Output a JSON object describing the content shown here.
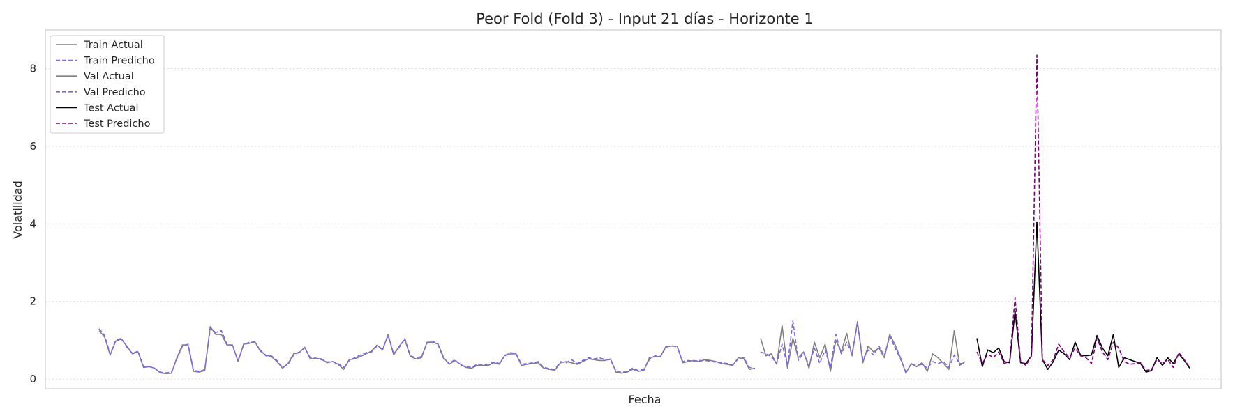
{
  "chart_data": {
    "type": "line",
    "title": "Peor Fold (Fold 3) - Input 21 días - Horizonte 1",
    "xlabel": "Fecha",
    "ylabel": "Volatilidad",
    "ylim": [
      -0.25,
      9.0
    ],
    "yticks": [
      0,
      2,
      4,
      6,
      8
    ],
    "grid": "horizontal dotted",
    "legend_position": "top-left",
    "series": [
      {
        "name": "Train Actual",
        "color": "#808080",
        "style": "solid",
        "values": [
          1.25,
          1.08,
          0.62,
          0.98,
          1.03,
          0.85,
          0.65,
          0.7,
          0.3,
          0.32,
          0.28,
          0.16,
          0.14,
          0.15,
          0.55,
          0.88,
          0.88,
          0.2,
          0.18,
          0.22,
          1.35,
          1.15,
          1.15,
          0.88,
          0.88,
          0.45,
          0.9,
          0.92,
          0.97,
          0.72,
          0.62,
          0.58,
          0.45,
          0.28,
          0.4,
          0.65,
          0.68,
          0.82,
          0.52,
          0.53,
          0.52,
          0.42,
          0.45,
          0.38,
          0.25,
          0.5,
          0.52,
          0.58,
          0.65,
          0.72,
          0.88,
          0.75,
          1.15,
          0.62,
          0.85,
          1.02,
          0.58,
          0.52,
          0.55,
          0.95,
          0.95,
          0.9,
          0.55,
          0.38,
          0.48,
          0.38,
          0.3,
          0.28,
          0.35,
          0.35,
          0.35,
          0.42,
          0.38,
          0.62,
          0.65,
          0.65,
          0.35,
          0.38,
          0.4,
          0.42,
          0.28,
          0.25,
          0.23,
          0.42,
          0.45,
          0.42,
          0.38,
          0.45,
          0.52,
          0.5,
          0.48,
          0.48,
          0.52,
          0.18,
          0.15,
          0.18,
          0.25,
          0.2,
          0.22,
          0.55,
          0.58,
          0.58,
          0.85,
          0.85,
          0.85,
          0.42,
          0.45,
          0.48,
          0.45,
          0.5,
          0.48,
          0.45,
          0.4,
          0.38,
          0.35,
          0.55,
          0.52,
          0.25,
          0.28
        ]
      },
      {
        "name": "Train Predicho",
        "color": "#7b68ee",
        "style": "dashed",
        "values": [
          1.3,
          1.12,
          0.65,
          1.0,
          1.05,
          0.82,
          0.66,
          0.72,
          0.32,
          0.33,
          0.27,
          0.18,
          0.16,
          0.17,
          0.52,
          0.85,
          0.9,
          0.22,
          0.2,
          0.24,
          1.3,
          1.2,
          1.25,
          0.9,
          0.86,
          0.48,
          0.88,
          0.95,
          0.95,
          0.75,
          0.6,
          0.6,
          0.48,
          0.3,
          0.38,
          0.62,
          0.7,
          0.8,
          0.55,
          0.54,
          0.5,
          0.44,
          0.45,
          0.4,
          0.3,
          0.48,
          0.55,
          0.62,
          0.68,
          0.7,
          0.85,
          0.78,
          1.12,
          0.65,
          0.82,
          1.05,
          0.6,
          0.55,
          0.58,
          0.92,
          0.98,
          0.88,
          0.52,
          0.4,
          0.5,
          0.36,
          0.32,
          0.3,
          0.38,
          0.36,
          0.38,
          0.44,
          0.4,
          0.6,
          0.68,
          0.66,
          0.38,
          0.4,
          0.42,
          0.45,
          0.3,
          0.27,
          0.25,
          0.45,
          0.42,
          0.5,
          0.4,
          0.48,
          0.55,
          0.52,
          0.55,
          0.5,
          0.5,
          0.2,
          0.17,
          0.2,
          0.28,
          0.22,
          0.25,
          0.5,
          0.6,
          0.58,
          0.82,
          0.86,
          0.83,
          0.45,
          0.48,
          0.46,
          0.48,
          0.48,
          0.46,
          0.43,
          0.42,
          0.4,
          0.37,
          0.52,
          0.55,
          0.3,
          0.27
        ]
      },
      {
        "name": "Val Actual",
        "color": "#808080",
        "style": "solid",
        "values": [
          1.05,
          0.6,
          0.65,
          0.38,
          1.38,
          0.28,
          1.05,
          0.55,
          0.7,
          0.28,
          0.95,
          0.55,
          0.9,
          0.2,
          1.0,
          0.7,
          1.18,
          0.6,
          1.48,
          0.42,
          0.85,
          0.7,
          0.8,
          0.55,
          1.15,
          0.88,
          0.55,
          0.15,
          0.4,
          0.32,
          0.42,
          0.2,
          0.65,
          0.55,
          0.4,
          0.25,
          1.25,
          0.35,
          0.45
        ]
      },
      {
        "name": "Val Predicho",
        "color": "#7b68ee",
        "style": "dashed",
        "values": [
          0.7,
          0.65,
          0.58,
          0.4,
          0.9,
          0.35,
          1.5,
          0.48,
          0.68,
          0.35,
          0.8,
          0.4,
          0.75,
          0.3,
          1.15,
          0.65,
          0.95,
          0.65,
          1.45,
          0.5,
          0.75,
          0.62,
          0.85,
          0.6,
          1.1,
          0.8,
          0.52,
          0.18,
          0.38,
          0.35,
          0.38,
          0.28,
          0.45,
          0.4,
          0.45,
          0.3,
          0.62,
          0.4,
          0.4
        ]
      },
      {
        "name": "Test Actual",
        "color": "#000000",
        "style": "solid",
        "values": [
          1.05,
          0.32,
          0.75,
          0.68,
          0.8,
          0.45,
          0.42,
          1.75,
          0.42,
          0.4,
          0.6,
          4.05,
          0.5,
          0.25,
          0.45,
          0.75,
          0.65,
          0.5,
          0.95,
          0.62,
          0.6,
          0.62,
          1.12,
          0.8,
          0.6,
          1.15,
          0.3,
          0.55,
          0.5,
          0.45,
          0.4,
          0.18,
          0.22,
          0.55,
          0.35,
          0.55,
          0.4,
          0.65,
          0.48,
          0.28
        ]
      },
      {
        "name": "Test Predicho",
        "color": "#800080",
        "style": "dashed",
        "values": [
          0.7,
          0.4,
          0.65,
          0.55,
          0.7,
          0.4,
          0.45,
          2.1,
          0.45,
          0.35,
          0.6,
          8.35,
          0.5,
          0.35,
          0.5,
          0.9,
          0.7,
          0.55,
          0.8,
          0.6,
          0.55,
          0.4,
          1.05,
          0.7,
          0.5,
          0.95,
          0.8,
          0.45,
          0.38,
          0.4,
          0.42,
          0.22,
          0.25,
          0.5,
          0.4,
          0.5,
          0.3,
          0.68,
          0.5,
          0.3
        ]
      }
    ]
  }
}
